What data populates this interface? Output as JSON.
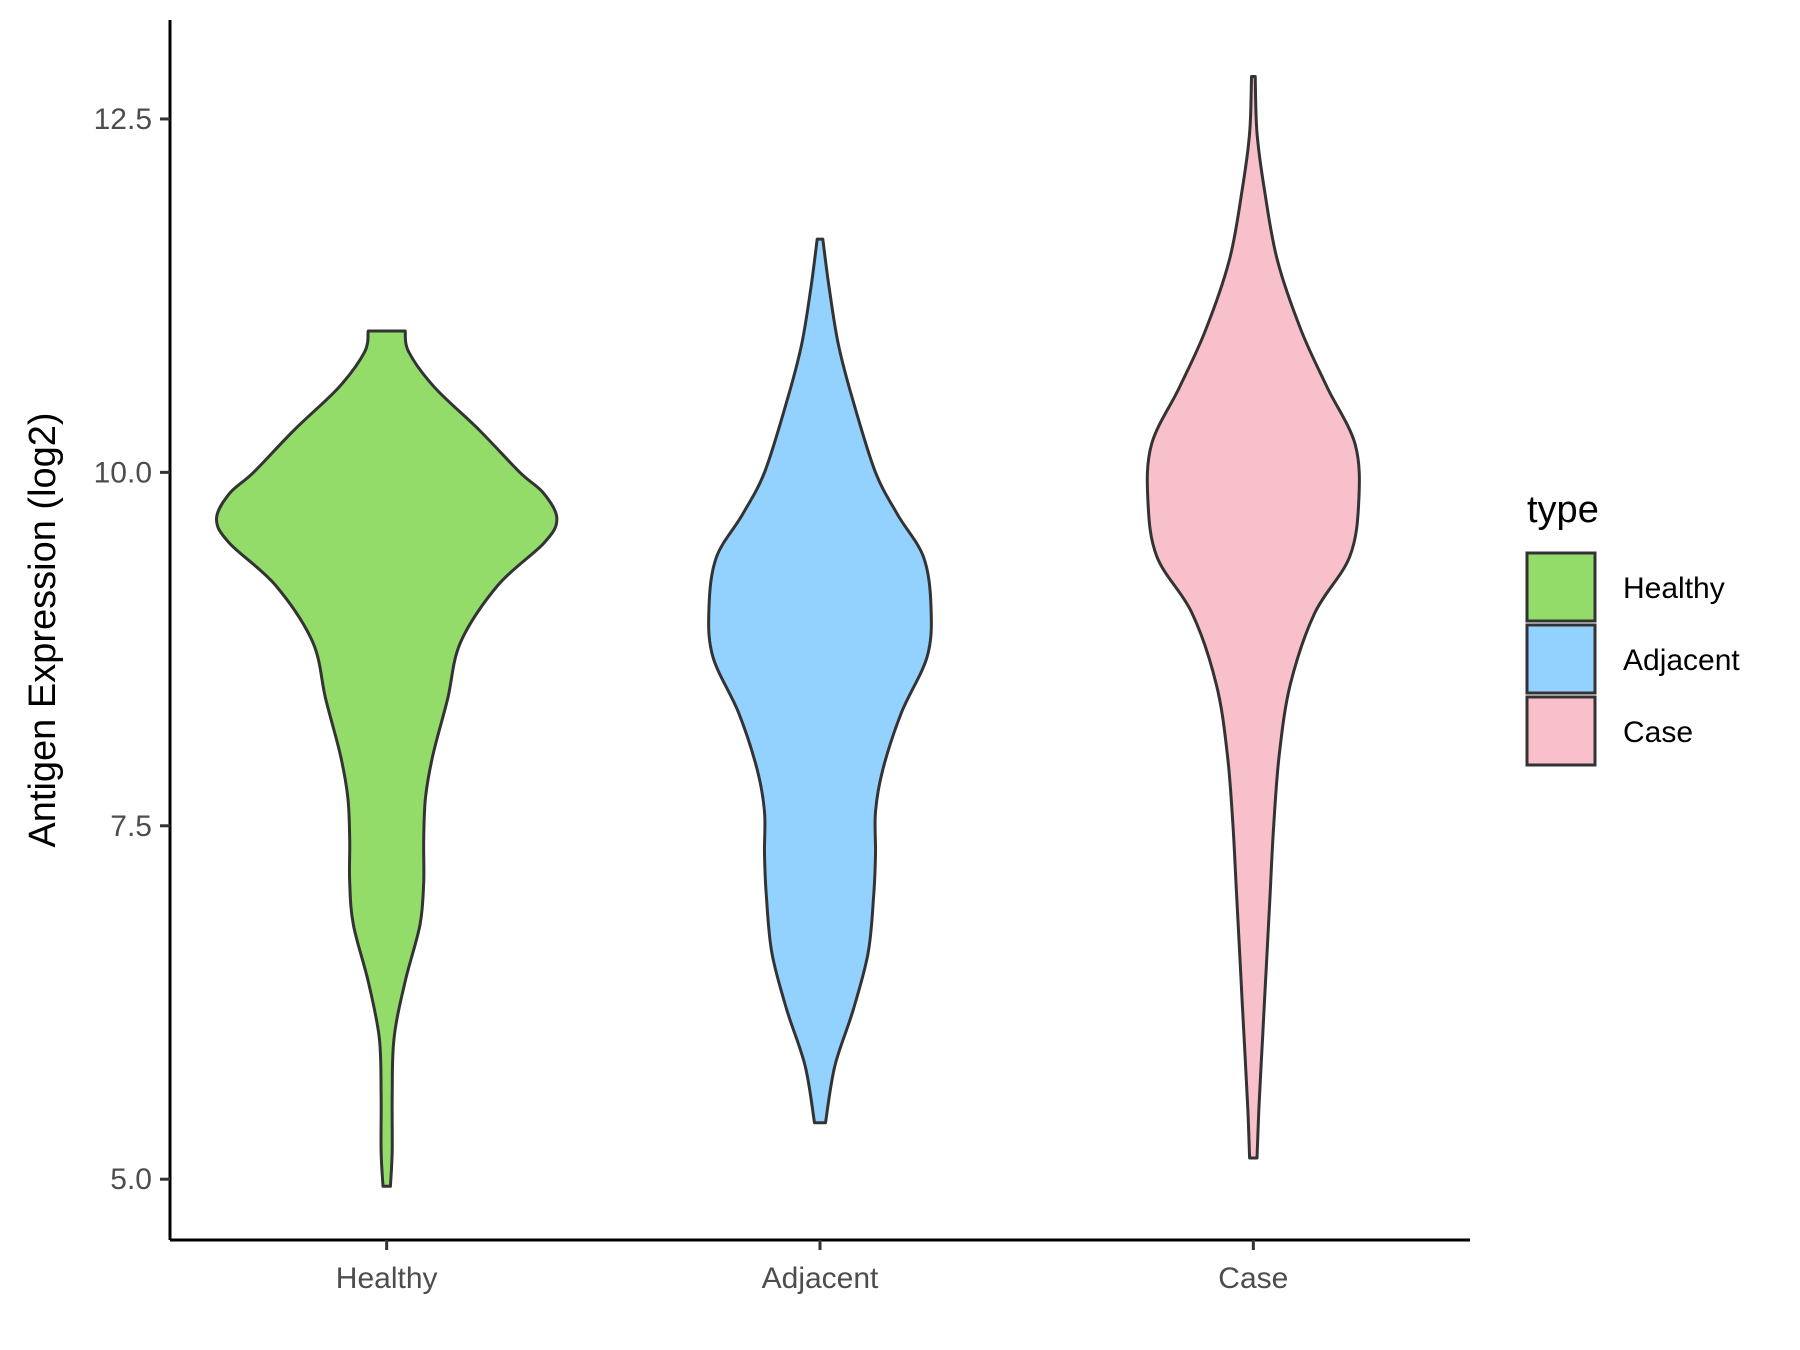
{
  "chart_data": {
    "type": "violin",
    "ylabel": "Antigen Expression (log2)",
    "xlabel": "",
    "categories": [
      "Healthy",
      "Adjacent",
      "Case"
    ],
    "ylim": [
      4.57,
      13.2
    ],
    "yticks": [
      5.0,
      7.5,
      10.0,
      12.5
    ],
    "ytick_labels": [
      "5.0",
      "7.5",
      "10.0",
      "12.5"
    ],
    "legend": {
      "title": "type",
      "position": "right",
      "entries": [
        {
          "label": "Healthy",
          "color": "#93DC6A"
        },
        {
          "label": "Adjacent",
          "color": "#93D2FF"
        },
        {
          "label": "Case",
          "color": "#F8C0CB"
        }
      ]
    },
    "series": [
      {
        "category": "Healthy",
        "color": "#93DC6A",
        "profile": [
          [
            4.95,
            0.02
          ],
          [
            5.2,
            0.03
          ],
          [
            5.6,
            0.03
          ],
          [
            6.0,
            0.04
          ],
          [
            6.4,
            0.1
          ],
          [
            6.8,
            0.18
          ],
          [
            7.1,
            0.2
          ],
          [
            7.4,
            0.2
          ],
          [
            7.7,
            0.21
          ],
          [
            8.0,
            0.25
          ],
          [
            8.4,
            0.33
          ],
          [
            8.8,
            0.4
          ],
          [
            9.2,
            0.6
          ],
          [
            9.5,
            0.85
          ],
          [
            9.67,
            0.92
          ],
          [
            9.85,
            0.85
          ],
          [
            10.0,
            0.72
          ],
          [
            10.3,
            0.5
          ],
          [
            10.6,
            0.26
          ],
          [
            10.85,
            0.12
          ],
          [
            11.0,
            0.1
          ]
        ]
      },
      {
        "category": "Adjacent",
        "color": "#93D2FF",
        "profile": [
          [
            5.4,
            0.03
          ],
          [
            5.8,
            0.08
          ],
          [
            6.2,
            0.18
          ],
          [
            6.6,
            0.26
          ],
          [
            7.0,
            0.29
          ],
          [
            7.3,
            0.3
          ],
          [
            7.6,
            0.3
          ],
          [
            7.9,
            0.34
          ],
          [
            8.3,
            0.44
          ],
          [
            8.7,
            0.58
          ],
          [
            9.05,
            0.6
          ],
          [
            9.4,
            0.56
          ],
          [
            9.7,
            0.42
          ],
          [
            10.0,
            0.3
          ],
          [
            10.5,
            0.18
          ],
          [
            10.9,
            0.1
          ],
          [
            11.3,
            0.05
          ],
          [
            11.65,
            0.015
          ]
        ]
      },
      {
        "category": "Case",
        "color": "#F8C0CB",
        "profile": [
          [
            5.15,
            0.02
          ],
          [
            5.5,
            0.03
          ],
          [
            6.0,
            0.05
          ],
          [
            6.5,
            0.07
          ],
          [
            7.0,
            0.09
          ],
          [
            7.5,
            0.11
          ],
          [
            8.0,
            0.14
          ],
          [
            8.5,
            0.2
          ],
          [
            9.0,
            0.33
          ],
          [
            9.4,
            0.52
          ],
          [
            9.8,
            0.57
          ],
          [
            10.2,
            0.55
          ],
          [
            10.6,
            0.4
          ],
          [
            11.0,
            0.26
          ],
          [
            11.5,
            0.13
          ],
          [
            12.0,
            0.06
          ],
          [
            12.4,
            0.02
          ],
          [
            12.8,
            0.01
          ]
        ]
      }
    ]
  }
}
